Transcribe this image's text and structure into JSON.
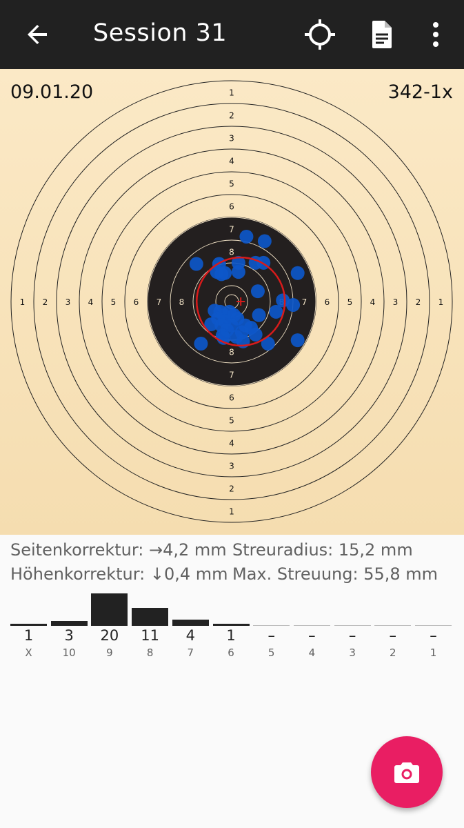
{
  "appbar": {
    "title": "Session 31",
    "back_icon": "arrow-back-icon",
    "actions": [
      "crosshair-icon",
      "document-icon",
      "more-vert-icon"
    ]
  },
  "target": {
    "date": "09.01.20",
    "score": "342-1x",
    "ring_labels": [
      "1",
      "2",
      "3",
      "4",
      "5",
      "6",
      "7",
      "8"
    ],
    "shots": [
      [
        0.65,
        2.85
      ],
      [
        1.45,
        2.65
      ],
      [
        -1.55,
        1.65
      ],
      [
        -0.55,
        1.65
      ],
      [
        0.3,
        1.7
      ],
      [
        1.05,
        1.7
      ],
      [
        1.4,
        1.7
      ],
      [
        -0.65,
        1.3
      ],
      [
        -0.3,
        1.25
      ],
      [
        -0.45,
        1.2
      ],
      [
        0.3,
        1.3
      ],
      [
        2.9,
        1.25
      ],
      [
        1.15,
        0.45
      ],
      [
        2.25,
        0.05
      ],
      [
        2.7,
        -0.15
      ],
      [
        1.95,
        -0.45
      ],
      [
        1.2,
        -0.6
      ],
      [
        -0.75,
        -0.4
      ],
      [
        -0.5,
        -0.45
      ],
      [
        -0.35,
        -0.6
      ],
      [
        -0.1,
        -0.45
      ],
      [
        0.1,
        -0.6
      ],
      [
        -0.6,
        -0.75
      ],
      [
        -0.3,
        -0.85
      ],
      [
        0.25,
        -0.75
      ],
      [
        -0.9,
        -1.0
      ],
      [
        -0.45,
        -1.05
      ],
      [
        0.0,
        -1.05
      ],
      [
        0.6,
        -1.05
      ],
      [
        0.85,
        -1.15
      ],
      [
        -0.2,
        -1.25
      ],
      [
        -0.4,
        -1.5
      ],
      [
        0.45,
        -1.35
      ],
      [
        1.05,
        -1.45
      ],
      [
        -0.35,
        -1.6
      ],
      [
        0.2,
        -1.55
      ],
      [
        0.5,
        -1.75
      ],
      [
        -1.35,
        -1.85
      ],
      [
        1.6,
        -1.85
      ],
      [
        2.9,
        -1.7
      ]
    ],
    "group_center": [
      0.4,
      0.0
    ],
    "group_radius": 1.55
  },
  "stats": {
    "side_correction": "Seitenkorrektur: →4,2 mm",
    "height_correction": "Höhenkorrektur: ↓0,4 mm",
    "spread_radius": "Streuradius: 15,2 mm",
    "max_spread": "Max. Streuung: 55,8 mm"
  },
  "histogram": {
    "bins": [
      {
        "label": "X",
        "count": "1",
        "value": 1
      },
      {
        "label": "10",
        "count": "3",
        "value": 3
      },
      {
        "label": "9",
        "count": "20",
        "value": 20
      },
      {
        "label": "8",
        "count": "11",
        "value": 11
      },
      {
        "label": "7",
        "count": "4",
        "value": 4
      },
      {
        "label": "6",
        "count": "1",
        "value": 1
      },
      {
        "label": "5",
        "count": "–",
        "value": 0
      },
      {
        "label": "4",
        "count": "–",
        "value": 0
      },
      {
        "label": "3",
        "count": "–",
        "value": 0
      },
      {
        "label": "2",
        "count": "–",
        "value": 0
      },
      {
        "label": "1",
        "count": "–",
        "value": 0
      }
    ]
  },
  "fab": {
    "icon": "camera-icon"
  },
  "colors": {
    "appbar": "#212121",
    "fab": "#e91e63",
    "shot": "#0d57c9",
    "group": "#d81b1b",
    "target_black": "#231f1f"
  }
}
